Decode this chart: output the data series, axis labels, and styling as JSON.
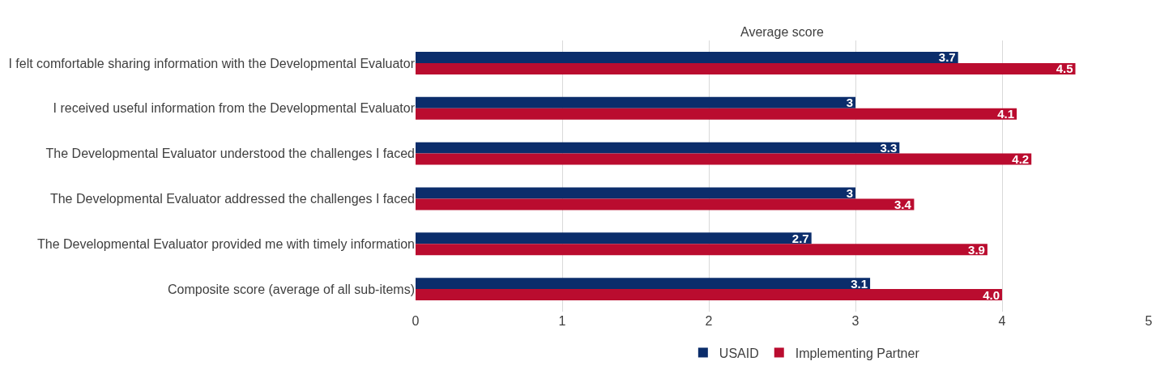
{
  "chart_data": {
    "type": "bar",
    "orientation": "horizontal",
    "xlabel": "Average score",
    "categories": [
      "I felt comfortable sharing information with the Developmental Evaluator",
      "I received useful information from the Developmental Evaluator",
      "The Developmental Evaluator understood the challenges I faced",
      "The Developmental Evaluator addressed the challenges I faced",
      "The Developmental Evaluator provided me with timely information",
      "Composite score (average of all sub-items)"
    ],
    "series": [
      {
        "name": "USAID",
        "color": "#0b2d6b",
        "values": [
          3.7,
          3,
          3.3,
          3,
          2.7,
          3.1
        ]
      },
      {
        "name": "Implementing Partner",
        "color": "#ba0c2f",
        "values": [
          4.5,
          4.1,
          4.2,
          3.4,
          3.9,
          4.0
        ]
      }
    ],
    "value_labels": [
      [
        "3.7",
        "3",
        "3.3",
        "3",
        "2.7",
        "3.1"
      ],
      [
        "4.5",
        "4.1",
        "4.2",
        "3.4",
        "3.9",
        "4.0"
      ]
    ],
    "xlim": [
      0,
      5
    ],
    "xticks": [
      0,
      1,
      2,
      3,
      4,
      5
    ],
    "grid": "x",
    "legend": "bottom left"
  }
}
